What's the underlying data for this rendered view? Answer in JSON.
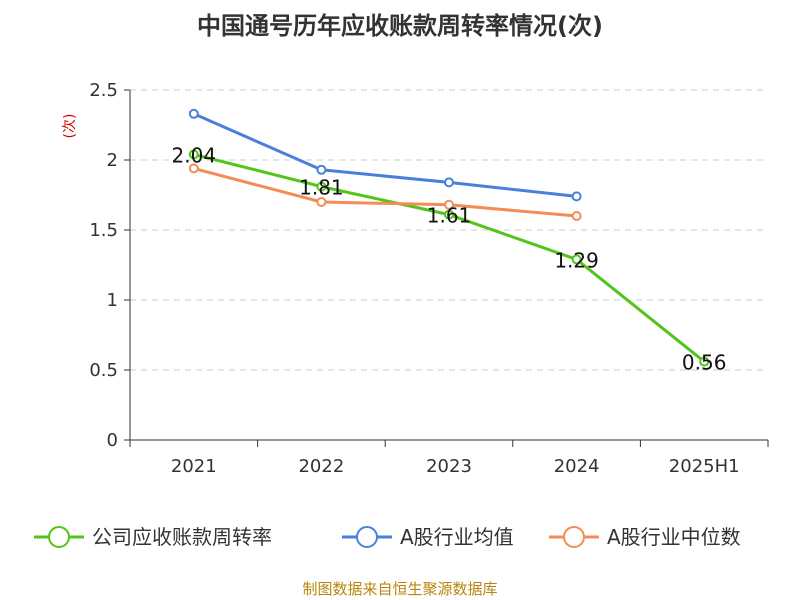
{
  "title": "中国通号历年应收账款周转率情况(次)",
  "footer": "制图数据来自恒生聚源数据库",
  "chart_data": {
    "type": "line",
    "title": "中国通号历年应收账款周转率情况(次)",
    "ylabel": "(次)",
    "xlabel": "",
    "categories": [
      "2021",
      "2022",
      "2023",
      "2024",
      "2025H1"
    ],
    "ylim": [
      0,
      2.5
    ],
    "yticks": [
      "0",
      "0.5",
      "1",
      "1.5",
      "2",
      "2.5"
    ],
    "grid": true,
    "legend_position": "bottom",
    "series": [
      {
        "name": "公司应收账款周转率",
        "color": "#52c41a",
        "values": [
          2.04,
          1.81,
          1.61,
          1.29,
          0.56
        ],
        "labels": [
          "2.04",
          "1.81",
          "1.61",
          "1.29",
          "0.56"
        ]
      },
      {
        "name": "A股行业均值",
        "color": "#4a7fdc",
        "values": [
          2.33,
          1.93,
          1.84,
          1.74,
          null
        ]
      },
      {
        "name": "A股行业中位数",
        "color": "#f58c56",
        "values": [
          1.94,
          1.7,
          1.68,
          1.6,
          null
        ]
      }
    ]
  }
}
